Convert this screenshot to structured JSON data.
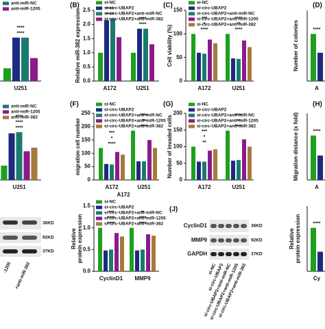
{
  "chart_data": [
    {
      "type": "bar",
      "ylim": [
        0,
        2.5
      ],
      "categories": [
        "U251"
      ],
      "series": [
        {
          "color": "#1ea01e",
          "values": [
            0.5
          ]
        },
        {
          "color": "#1c2a80",
          "values": [
            1.7
          ]
        },
        {
          "name": "anti-miR-NC",
          "color": "#1b7a6e",
          "values": [
            1.7
          ]
        },
        {
          "name": "anti-miR-1205",
          "color": "#8b1a8b",
          "values": [
            0.9
          ]
        }
      ],
      "annotations": [
        [
          "****",
          "****"
        ]
      ]
    },
    {
      "type": "bar",
      "panel": "(B)",
      "ylabel": "Relative miR-382 expression",
      "ylim": [
        0,
        2.5
      ],
      "yticks": [
        {
          "value": 0,
          "label": "0.0"
        },
        0.5,
        {
          "value": 1,
          "label": "1.0"
        },
        1.5,
        {
          "value": 2,
          "label": "2.0"
        },
        2.5
      ],
      "categories": [
        "A172",
        "U251"
      ],
      "series": [
        {
          "name": "si-NC",
          "color": "#1ea01e",
          "values": [
            1.0,
            1.0
          ]
        },
        {
          "name": "si-circ-UBAP2",
          "color": "#1c2a80",
          "values": [
            2.15,
            1.85
          ]
        },
        {
          "name": "si-circ-UBAP2+anti-miR-NC",
          "color": "#1b7a6e",
          "values": [
            2.2,
            1.85
          ]
        },
        {
          "name": "si-circ-UBAP2+anti-miR-382",
          "color": "#8b1a8b",
          "values": [
            1.55,
            1.3
          ]
        }
      ],
      "annotations": [
        [
          "****",
          "****"
        ],
        [
          "****",
          "****"
        ]
      ]
    },
    {
      "type": "bar",
      "panel": "(C)",
      "ylabel": "Cell viability (%)",
      "ylim": [
        0,
        150
      ],
      "yticks": [
        0,
        50,
        100,
        150
      ],
      "categories": [
        "A172",
        "U251"
      ],
      "series": [
        {
          "name": "si-NC",
          "color": "#1ea01e",
          "values": [
            100,
            100
          ]
        },
        {
          "name": "si-circ-UBAP2",
          "color": "#1c2a80",
          "values": [
            60,
            48
          ]
        },
        {
          "name": "si-circ-UBAP2+anti-miR-NC",
          "color": "#1b7a6e",
          "values": [
            58,
            47
          ]
        },
        {
          "name": "si-circ-UBAP2+anti-miR-1205",
          "color": "#8b1a8b",
          "values": [
            88,
            86
          ]
        },
        {
          "name": "si-circ-UBAP2+anti-miR-382",
          "color": "#a57a3c",
          "values": [
            80,
            72
          ]
        }
      ],
      "annotations": [
        [
          "****",
          "*",
          "***"
        ],
        [
          "****",
          "**",
          "****"
        ]
      ]
    },
    {
      "type": "bar",
      "panel": "(D)",
      "ylabel": "Number of colonies",
      "ylim": [
        0,
        150
      ],
      "categories": [
        "A"
      ],
      "series": [
        {
          "color": "#1ea01e",
          "values": [
            100
          ]
        },
        {
          "color": "#1c2a80",
          "values": [
            60
          ]
        }
      ],
      "annotations": [
        [
          "****"
        ]
      ]
    },
    {
      "type": "bar",
      "ylim": [
        0,
        2.5
      ],
      "categories": [
        "U251"
      ],
      "series": [
        {
          "color": "#1ea01e",
          "values": [
            0.6
          ]
        },
        {
          "color": "#1c2a80",
          "values": [
            1.95
          ]
        },
        {
          "name": "anti-miR-NC",
          "color": "#1b7a6e",
          "values": [
            2.0
          ]
        },
        {
          "name": "anti-miR-1205",
          "color": "#8b1a8b",
          "values": [
            1.2
          ]
        },
        {
          "name": "anti-miR-382",
          "color": "#a57a3c",
          "values": [
            1.35
          ]
        }
      ],
      "annotations": [
        [
          "****",
          "****",
          "****"
        ]
      ]
    },
    {
      "type": "bar",
      "panel": "(F)",
      "ylabel": "migration cell number",
      "ylim": [
        0,
        250
      ],
      "yticks": [
        0,
        50,
        100,
        150,
        200,
        250
      ],
      "categories": [
        "A172",
        "U251"
      ],
      "series": [
        {
          "name": "si-NC",
          "color": "#1ea01e",
          "values": [
            120,
            185
          ]
        },
        {
          "name": "si-circ-UBAP2",
          "color": "#1c2a80",
          "values": [
            60,
            70
          ]
        },
        {
          "name": "si-circ-UBAP2+anti-miR-NC",
          "color": "#1b7a6e",
          "values": [
            58,
            70
          ]
        },
        {
          "name": "si-circ-UBAP2+anti-miR-1205",
          "color": "#8b1a8b",
          "values": [
            105,
            150
          ]
        },
        {
          "name": "si-circ-UBAP2+anti-miR-382",
          "color": "#a57a3c",
          "values": [
            95,
            120
          ]
        }
      ],
      "annotations": [
        [
          "****",
          "*",
          "***"
        ],
        [
          "****",
          "**",
          "****"
        ]
      ]
    },
    {
      "type": "bar",
      "panel": "(G)",
      "ylabel": "Number of invaded cells",
      "ylim": [
        0,
        200
      ],
      "yticks": [
        0,
        50,
        100,
        150,
        200
      ],
      "categories": [
        "A172",
        "U251"
      ],
      "series": [
        {
          "name": "si-NC",
          "color": "#1ea01e",
          "values": [
            100,
            148
          ]
        },
        {
          "name": "si-circ-UBAP2",
          "color": "#1c2a80",
          "values": [
            55,
            58
          ]
        },
        {
          "name": "si-circ-UBAP2+anti-miR-NC",
          "color": "#1b7a6e",
          "values": [
            55,
            60
          ]
        },
        {
          "name": "si-circ-UBAP2+anti-miR-1205",
          "color": "#8b1a8b",
          "values": [
            88,
            122
          ]
        },
        {
          "name": "si-circ-UBAP2+anti-miR-382",
          "color": "#a57a3c",
          "values": [
            92,
            100
          ]
        }
      ],
      "annotations": [
        [
          "**",
          "*",
          "***"
        ],
        [
          "****",
          "**",
          "****"
        ]
      ]
    },
    {
      "type": "bar",
      "panel": "(H)",
      "ylabel": "Migration distance (x fold)",
      "ylim": [
        0,
        1.5
      ],
      "categories": [
        "A"
      ],
      "series": [
        {
          "color": "#1ea01e",
          "values": [
            1.0
          ]
        },
        {
          "color": "#1c2a80",
          "values": [
            0.55
          ]
        }
      ],
      "annotations": [
        [
          "****"
        ]
      ]
    },
    {
      "type": "bar",
      "ylabel": [
        "Relative",
        "protein expression"
      ],
      "ylim": [
        0,
        1.5
      ],
      "yticks": [
        {
          "value": 0,
          "label": "0.0"
        },
        0.5,
        {
          "value": 1,
          "label": "1.0"
        },
        1.5
      ],
      "categories": [
        "CyclinD1",
        "MMP9"
      ],
      "series": [
        {
          "name": "si-NC",
          "color": "#1ea01e",
          "values": [
            1.0,
            1.0
          ]
        },
        {
          "name": "si-circ-UBAP2",
          "color": "#1c2a80",
          "values": [
            0.48,
            0.48
          ]
        },
        {
          "name": "si-circ-UBAP2+anti-miR-NC",
          "color": "#1b7a6e",
          "values": [
            0.5,
            0.5
          ]
        },
        {
          "name": "si-circ-UBAP2+anti-miR-1205",
          "color": "#8b1a8b",
          "values": [
            0.88,
            0.85
          ]
        },
        {
          "name": "si-circ-UBAP2+anti-miR-382",
          "color": "#a57a3c",
          "values": [
            0.8,
            0.82
          ]
        }
      ],
      "annotations": [
        [
          "****",
          "****",
          "***"
        ],
        [
          "****",
          "****",
          "**"
        ]
      ]
    },
    {
      "type": "bar",
      "ylabel": [
        "Relative",
        "protein expression"
      ],
      "ylim": [
        0,
        1.5
      ],
      "categories": [
        "Cy"
      ],
      "series": [
        {
          "color": "#1ea01e",
          "values": [
            1.0
          ]
        },
        {
          "color": "#1c2a80",
          "values": [
            0.45
          ]
        }
      ],
      "annotations": [
        [
          "****"
        ]
      ]
    }
  ],
  "extra_labels": [
    "A172"
  ],
  "blot_left": {
    "sizes": [
      "36KD",
      "92KD",
      "37KD"
    ],
    "lanes": [
      "-1205",
      "+anti-miR-382"
    ]
  },
  "blot_j": {
    "panel": "(J)",
    "proteins": [
      "CyclinD1",
      "MMP9",
      "GAPDH"
    ],
    "sizes": [
      "36KD",
      "92KD",
      "37KD"
    ],
    "lanes": [
      "si-NC",
      "si-circ-UBAP2",
      "si-circ-UBAP2+anti-miR-NC",
      "si-circ-UBAP2+anti-miR-1205",
      "si-circ-UBAP2+anti-miR-382"
    ]
  }
}
